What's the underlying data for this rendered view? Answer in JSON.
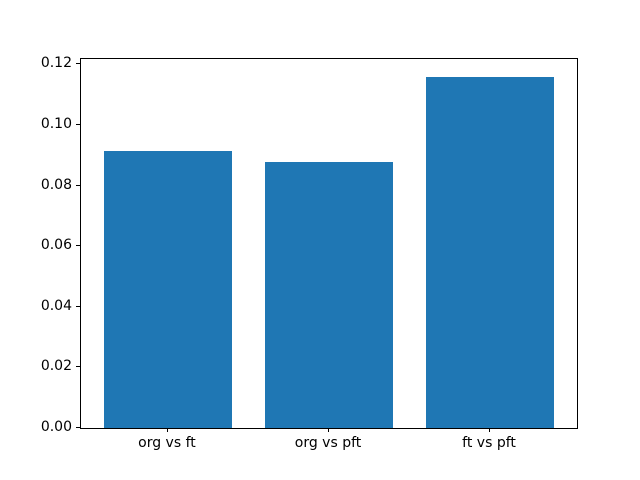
{
  "chart_data": {
    "type": "bar",
    "title": "",
    "xlabel": "",
    "ylabel": "",
    "categories": [
      "org vs ft",
      "org vs pft",
      "ft vs pft"
    ],
    "values": [
      0.0916,
      0.0879,
      0.116
    ],
    "yticks": [
      {
        "label": "0.00",
        "value": 0.0
      },
      {
        "label": "0.02",
        "value": 0.02
      },
      {
        "label": "0.04",
        "value": 0.04
      },
      {
        "label": "0.06",
        "value": 0.06
      },
      {
        "label": "0.08",
        "value": 0.08
      },
      {
        "label": "0.10",
        "value": 0.1
      },
      {
        "label": "0.12",
        "value": 0.12
      }
    ],
    "ylim": [
      0,
      0.1218
    ],
    "bar_color": "#1f77b4",
    "bar_width_fraction": 0.8,
    "grid": false,
    "legend_position": "none"
  }
}
